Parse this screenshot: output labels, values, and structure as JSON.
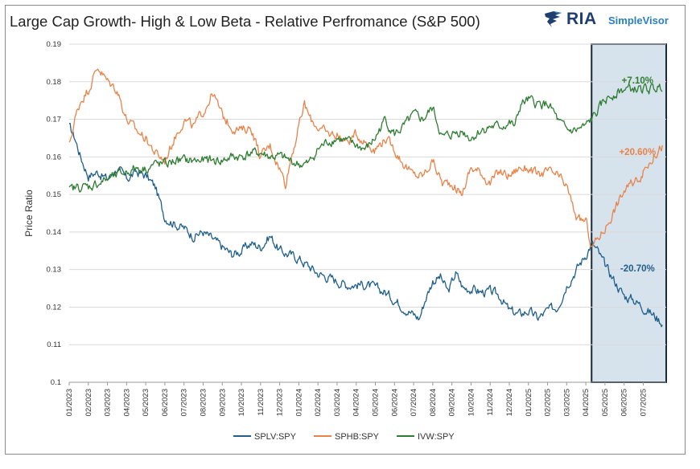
{
  "title": "Large Cap Growth- High & Low Beta - Relative Perfromance (S&P 500)",
  "logo": {
    "brand": "RIA",
    "product": "SimpleVisor"
  },
  "chart_data": {
    "type": "line",
    "ylabel": "Price Ratio",
    "ylim": [
      0.1,
      0.19
    ],
    "yticks": [
      "0.1",
      "0.11",
      "0.12",
      "0.13",
      "0.14",
      "0.15",
      "0.16",
      "0.17",
      "0.18",
      "0.19"
    ],
    "x_tick_labels": [
      "01/2023",
      "02/2023",
      "03/2023",
      "04/2023",
      "05/2023",
      "06/2023",
      "07/2023",
      "08/2023",
      "09/2023",
      "10/2023",
      "11/2023",
      "12/2023",
      "01/2024",
      "02/2024",
      "03/2024",
      "04/2024",
      "05/2024",
      "06/2024",
      "07/2024",
      "08/2024",
      "09/2024",
      "10/2024",
      "11/2024",
      "12/2024",
      "01/2025",
      "02/2025",
      "03/2025",
      "04/2025",
      "05/2025",
      "06/2025",
      "07/2025"
    ],
    "x_range_months": [
      0,
      31.2
    ],
    "grid": "horizontal",
    "legend_placement": "bottom",
    "highlight_region": {
      "x_start_month": 27.3,
      "x_end_month": 31.2,
      "fill": "#d6e2ec"
    },
    "series": [
      {
        "name": "SPLV:SPY",
        "color": "#1f5f8b",
        "x": [
          0,
          0.3,
          0.6,
          1.0,
          1.5,
          2.0,
          2.5,
          3.0,
          3.5,
          4.0,
          4.5,
          4.8,
          5.0,
          5.3,
          5.6,
          6.0,
          6.5,
          7.0,
          7.5,
          8.0,
          8.5,
          9.0,
          9.5,
          10.0,
          10.5,
          11.0,
          11.5,
          12.0,
          12.5,
          13.0,
          13.5,
          14.0,
          14.5,
          15.0,
          15.5,
          16.0,
          16.5,
          17.0,
          17.5,
          18.0,
          18.3,
          18.6,
          19.0,
          19.4,
          19.8,
          20.2,
          20.6,
          21.0,
          21.5,
          22.0,
          22.5,
          23.0,
          23.5,
          24.0,
          24.5,
          25.0,
          25.5,
          26.0,
          26.5,
          27.0,
          27.3,
          27.6,
          28.0,
          28.5,
          29.0,
          29.5,
          30.0,
          30.5,
          31.0
        ],
        "values": [
          0.168,
          0.165,
          0.16,
          0.155,
          0.156,
          0.154,
          0.157,
          0.154,
          0.156,
          0.155,
          0.152,
          0.147,
          0.144,
          0.143,
          0.142,
          0.141,
          0.139,
          0.14,
          0.138,
          0.136,
          0.134,
          0.135,
          0.137,
          0.136,
          0.139,
          0.135,
          0.134,
          0.133,
          0.131,
          0.129,
          0.128,
          0.127,
          0.126,
          0.126,
          0.126,
          0.125,
          0.124,
          0.122,
          0.12,
          0.118,
          0.117,
          0.122,
          0.127,
          0.128,
          0.124,
          0.129,
          0.125,
          0.125,
          0.124,
          0.124,
          0.123,
          0.119,
          0.118,
          0.119,
          0.117,
          0.119,
          0.12,
          0.126,
          0.13,
          0.134,
          0.137,
          0.135,
          0.131,
          0.127,
          0.123,
          0.122,
          0.12,
          0.118,
          0.116
        ]
      },
      {
        "name": "SPHB:SPY",
        "color": "#e8834a",
        "x": [
          0,
          0.3,
          0.6,
          1.0,
          1.5,
          2.0,
          2.5,
          3.0,
          3.5,
          4.0,
          4.5,
          5.0,
          5.5,
          6.0,
          6.5,
          7.0,
          7.5,
          8.0,
          8.5,
          9.0,
          9.5,
          10.0,
          10.5,
          11.0,
          11.3,
          11.6,
          12.0,
          12.3,
          12.6,
          13.0,
          13.5,
          14.0,
          14.5,
          15.0,
          15.5,
          16.0,
          16.5,
          17.0,
          17.5,
          18.0,
          18.5,
          19.0,
          19.5,
          20.0,
          20.5,
          21.0,
          21.5,
          22.0,
          22.5,
          23.0,
          23.5,
          24.0,
          24.5,
          25.0,
          25.5,
          26.0,
          26.3,
          26.6,
          27.0,
          27.3,
          27.6,
          28.0,
          28.5,
          29.0,
          29.5,
          30.0,
          30.5,
          31.0
        ],
        "values": [
          0.163,
          0.17,
          0.175,
          0.178,
          0.184,
          0.18,
          0.178,
          0.17,
          0.167,
          0.165,
          0.161,
          0.159,
          0.165,
          0.17,
          0.168,
          0.172,
          0.177,
          0.171,
          0.168,
          0.167,
          0.168,
          0.16,
          0.163,
          0.157,
          0.153,
          0.16,
          0.168,
          0.174,
          0.17,
          0.168,
          0.166,
          0.166,
          0.164,
          0.166,
          0.164,
          0.162,
          0.165,
          0.162,
          0.158,
          0.155,
          0.155,
          0.159,
          0.153,
          0.153,
          0.15,
          0.157,
          0.156,
          0.153,
          0.156,
          0.155,
          0.157,
          0.157,
          0.155,
          0.156,
          0.155,
          0.152,
          0.147,
          0.143,
          0.143,
          0.136,
          0.138,
          0.141,
          0.146,
          0.151,
          0.153,
          0.156,
          0.16,
          0.163
        ]
      },
      {
        "name": "IVW:SPY",
        "color": "#2e7d32",
        "x": [
          0,
          0.5,
          1.0,
          1.5,
          2.0,
          2.5,
          3.0,
          3.5,
          4.0,
          4.5,
          5.0,
          5.5,
          6.0,
          6.5,
          7.0,
          7.5,
          8.0,
          8.5,
          9.0,
          9.5,
          10.0,
          10.5,
          11.0,
          11.5,
          12.0,
          12.5,
          13.0,
          13.5,
          14.0,
          14.5,
          15.0,
          15.5,
          16.0,
          16.5,
          17.0,
          17.5,
          18.0,
          18.5,
          19.0,
          19.5,
          20.0,
          20.5,
          21.0,
          21.5,
          22.0,
          22.5,
          23.0,
          23.3,
          23.6,
          24.0,
          24.5,
          25.0,
          25.3,
          25.6,
          26.0,
          26.5,
          27.0,
          27.3,
          27.6,
          28.0,
          28.5,
          29.0,
          29.5,
          30.0,
          30.5,
          31.0
        ],
        "values": [
          0.151,
          0.152,
          0.152,
          0.153,
          0.154,
          0.155,
          0.156,
          0.157,
          0.157,
          0.158,
          0.158,
          0.159,
          0.159,
          0.159,
          0.159,
          0.159,
          0.159,
          0.16,
          0.16,
          0.161,
          0.161,
          0.16,
          0.16,
          0.159,
          0.158,
          0.158,
          0.162,
          0.164,
          0.165,
          0.164,
          0.163,
          0.162,
          0.165,
          0.17,
          0.166,
          0.168,
          0.171,
          0.17,
          0.173,
          0.165,
          0.166,
          0.167,
          0.165,
          0.167,
          0.168,
          0.168,
          0.169,
          0.168,
          0.174,
          0.175,
          0.174,
          0.174,
          0.172,
          0.169,
          0.167,
          0.167,
          0.168,
          0.17,
          0.172,
          0.175,
          0.177,
          0.178,
          0.178,
          0.178,
          0.178,
          0.179
        ]
      }
    ],
    "annotations": [
      {
        "text": "+7.10%",
        "series": "IVW:SPY",
        "color": "#2e7d32",
        "x_month": 29.7,
        "y_value": 0.1795
      },
      {
        "text": "+20.60%",
        "series": "SPHB:SPY",
        "color": "#e8834a",
        "x_month": 29.7,
        "y_value": 0.1605
      },
      {
        "text": "-20.70%",
        "series": "SPLV:SPY",
        "color": "#1f5f8b",
        "x_month": 29.7,
        "y_value": 0.1295
      }
    ]
  }
}
